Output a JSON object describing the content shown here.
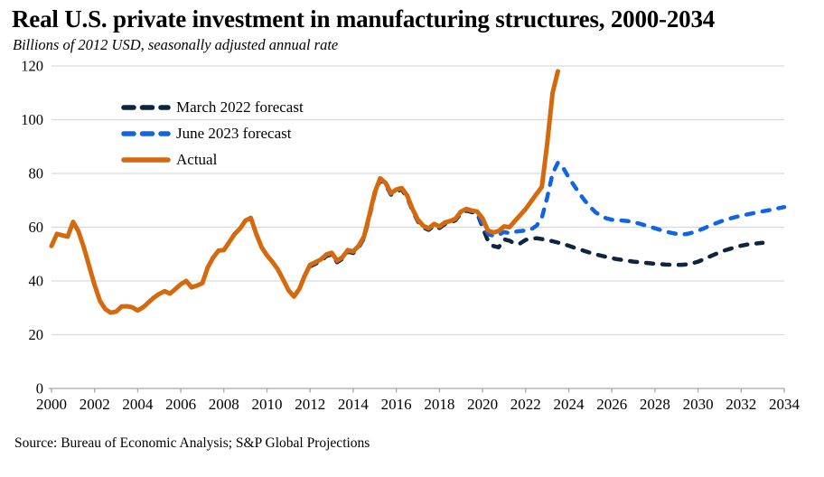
{
  "header": {
    "title": "Real U.S. private investment in manufacturing structures, 2000-2034",
    "subtitle": "Billions of 2012 USD, seasonally adjusted annual rate"
  },
  "footer": {
    "source": "Source: Bureau of Economic Analysis; S&P Global Projections"
  },
  "legend": {
    "items": [
      {
        "label": "March 2022 forecast",
        "color": "#0D2540",
        "style": "dashed"
      },
      {
        "label": "June 2023 forecast",
        "color": "#1165E3",
        "style": "dashed"
      },
      {
        "label": "Actual",
        "color": "#D4690E",
        "style": "solid"
      }
    ]
  },
  "colors": {
    "gridline": "#D9D9D9",
    "axis": "#A6A6A6",
    "navy": "#0D2540",
    "blue": "#1165E3",
    "orange": "#D4690E"
  },
  "chart_data": {
    "type": "line",
    "title": "Real U.S. private investment in manufacturing structures, 2000-2034",
    "subtitle": "Billions of 2012 USD, seasonally adjusted annual rate",
    "xlabel": "",
    "ylabel": "Billions of 2012 USD",
    "x_range": [
      2000,
      2034
    ],
    "y_range": [
      0,
      120
    ],
    "x_ticks": [
      2000,
      2002,
      2004,
      2006,
      2008,
      2010,
      2012,
      2014,
      2016,
      2018,
      2020,
      2022,
      2024,
      2026,
      2028,
      2030,
      2032,
      2034
    ],
    "y_ticks": [
      0,
      20,
      40,
      60,
      80,
      100,
      120
    ],
    "grid": "horizontal",
    "legend_position": "top-left-inside",
    "series": [
      {
        "name": "March 2022 forecast",
        "style": "dashed",
        "color": "#0D2540",
        "start": 2012.0,
        "step": 0.25,
        "values": [
          45.4,
          46.4,
          47.4,
          49.2,
          49.9,
          47.0,
          48.2,
          50.9,
          50.4,
          52.4,
          55.9,
          63.9,
          72.4,
          77.6,
          75.9,
          72.1,
          73.4,
          74.0,
          71.2,
          66.2,
          62.2,
          59.9,
          59.0,
          60.6,
          59.7,
          61.1,
          61.7,
          62.6,
          65.2,
          66.2,
          65.6,
          65.2,
          60.0,
          55.0,
          53.0,
          52.5,
          55.5,
          55.0,
          53.8,
          54.0,
          55.3,
          55.7,
          55.9,
          55.6,
          55.2,
          54.8,
          54.3,
          53.7,
          53.1,
          52.4,
          51.8,
          51.1,
          50.5,
          49.9,
          49.4,
          48.9,
          48.5,
          48.1,
          47.8,
          47.5,
          47.2,
          47.0,
          46.8,
          46.6,
          46.4,
          46.3,
          46.1,
          46.0,
          46.0,
          46.0,
          46.2,
          46.6,
          47.2,
          48.0,
          48.9,
          49.8,
          50.6,
          51.4,
          52.0,
          52.6,
          53.1,
          53.5,
          53.8,
          54.0,
          54.2
        ]
      },
      {
        "name": "June 2023 forecast",
        "style": "dashed",
        "color": "#1165E3",
        "start": 2012.0,
        "step": 0.25,
        "values": [
          45.8,
          46.8,
          47.8,
          49.6,
          50.2,
          47.4,
          48.6,
          51.2,
          50.8,
          52.8,
          56.2,
          64.2,
          72.8,
          78.0,
          76.2,
          72.4,
          73.8,
          74.4,
          71.5,
          66.5,
          62.5,
          60.2,
          59.4,
          61.0,
          60.1,
          61.5,
          62.0,
          63.0,
          65.5,
          66.5,
          66.0,
          65.5,
          61.0,
          57.5,
          56.8,
          57.2,
          58.2,
          57.8,
          58.3,
          58.6,
          58.8,
          59.2,
          60.5,
          63.5,
          71.0,
          80.0,
          84.0,
          82.0,
          78.5,
          75.5,
          72.5,
          69.8,
          67.5,
          65.5,
          64.2,
          63.3,
          62.8,
          62.6,
          62.5,
          62.3,
          61.9,
          61.4,
          60.8,
          60.2,
          59.6,
          59.0,
          58.4,
          57.9,
          57.5,
          57.3,
          57.5,
          58.0,
          58.7,
          59.5,
          60.4,
          61.2,
          62.0,
          62.7,
          63.3,
          63.8,
          64.3,
          64.7,
          65.1,
          65.5,
          65.9,
          66.3,
          66.7,
          67.1,
          67.5
        ]
      },
      {
        "name": "Actual",
        "style": "solid",
        "color": "#D4690E",
        "start": 2000.0,
        "step": 0.25,
        "values": [
          53.0,
          57.5,
          57.0,
          56.5,
          62.0,
          58.5,
          52.5,
          45.5,
          38.5,
          32.5,
          29.5,
          28.2,
          28.6,
          30.5,
          30.6,
          30.2,
          29.0,
          30.2,
          32.0,
          33.8,
          35.2,
          36.2,
          35.3,
          37.0,
          38.8,
          40.0,
          37.6,
          38.3,
          39.2,
          45.0,
          48.7,
          51.3,
          51.5,
          54.5,
          57.5,
          59.5,
          62.5,
          63.5,
          57.5,
          52.5,
          49.5,
          47.1,
          44.3,
          40.5,
          36.5,
          34.2,
          37.0,
          42.0,
          46.0,
          47.0,
          48.0,
          49.8,
          50.5,
          47.6,
          48.8,
          51.5,
          51.0,
          53.0,
          56.5,
          64.5,
          73.0,
          78.2,
          76.5,
          72.7,
          74.0,
          74.6,
          71.8,
          66.8,
          62.8,
          60.5,
          59.6,
          61.2,
          60.3,
          61.7,
          62.3,
          63.2,
          65.8,
          66.8,
          66.2,
          65.8,
          63.3,
          58.8,
          58.0,
          58.6,
          60.3,
          60.0,
          62.3,
          64.5,
          66.8,
          69.5,
          72.3,
          75.0,
          91.0,
          110.0,
          118.0
        ]
      }
    ]
  }
}
